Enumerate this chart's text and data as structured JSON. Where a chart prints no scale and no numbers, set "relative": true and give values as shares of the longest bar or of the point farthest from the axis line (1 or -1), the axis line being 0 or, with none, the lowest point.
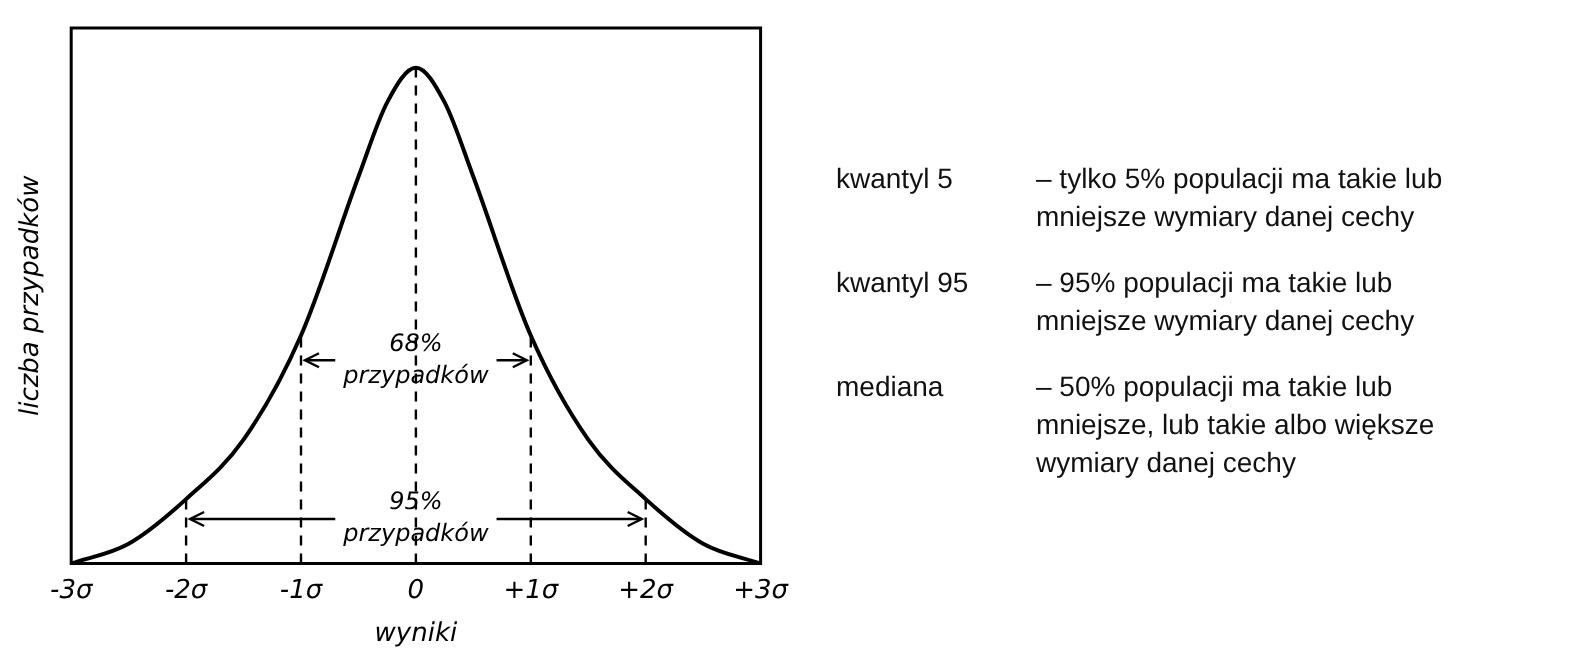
{
  "chart_data": {
    "type": "line",
    "relative": true,
    "xlabel": "wyniki",
    "ylabel": "liczba przypadków",
    "x": [
      -3,
      -2.5,
      -2,
      -1.5,
      -1,
      -0.5,
      -0.25,
      0,
      0.25,
      0.5,
      1,
      1.5,
      2,
      2.5,
      3
    ],
    "series": [
      {
        "color": "#000000",
        "values": [
          0,
          0.04,
          0.13,
          0.25,
          0.46,
          0.78,
          0.93,
          1,
          0.93,
          0.78,
          0.46,
          0.25,
          0.13,
          0.04,
          0
        ]
      }
    ],
    "xlim": [
      -3,
      3
    ],
    "xticks": [
      {
        "value": -3,
        "label": "-3σ"
      },
      {
        "value": -2,
        "label": "-2σ"
      },
      {
        "value": -1,
        "label": "-1σ"
      },
      0,
      {
        "value": 1,
        "label": "+1σ"
      },
      {
        "value": 2,
        "label": "+2σ"
      },
      {
        "value": 3,
        "label": "+3σ"
      }
    ],
    "ref_lines": [
      {
        "axis": "x",
        "value": -2,
        "line_style": "dashed"
      },
      {
        "axis": "x",
        "value": -1,
        "line_style": "dashed"
      },
      {
        "axis": "x",
        "value": 0,
        "line_style": "dashed"
      },
      {
        "axis": "x",
        "value": 1,
        "line_style": "dashed"
      },
      {
        "axis": "x",
        "value": 2,
        "line_style": "dashed"
      }
    ],
    "annotations": [
      {
        "text": "68% przypadków",
        "x": 0,
        "y": 0.41
      },
      {
        "text": "95% przypadków",
        "x": 0,
        "y": 0.09
      },
      "kwantyl 5",
      "– tylko 5% populacji ma takie lub mniejsze wymiary danej cechy",
      "kwantyl 95",
      "– 95% populacji ma takie lub mniejsze wymiary danej cechy",
      "mediana",
      "– 50% populacji ma takie lub mniejsze, lub takie albo większe wymiary danej cechy"
    ],
    "grid": false,
    "legend": false,
    "marker": "none",
    "line_style": "solid"
  }
}
